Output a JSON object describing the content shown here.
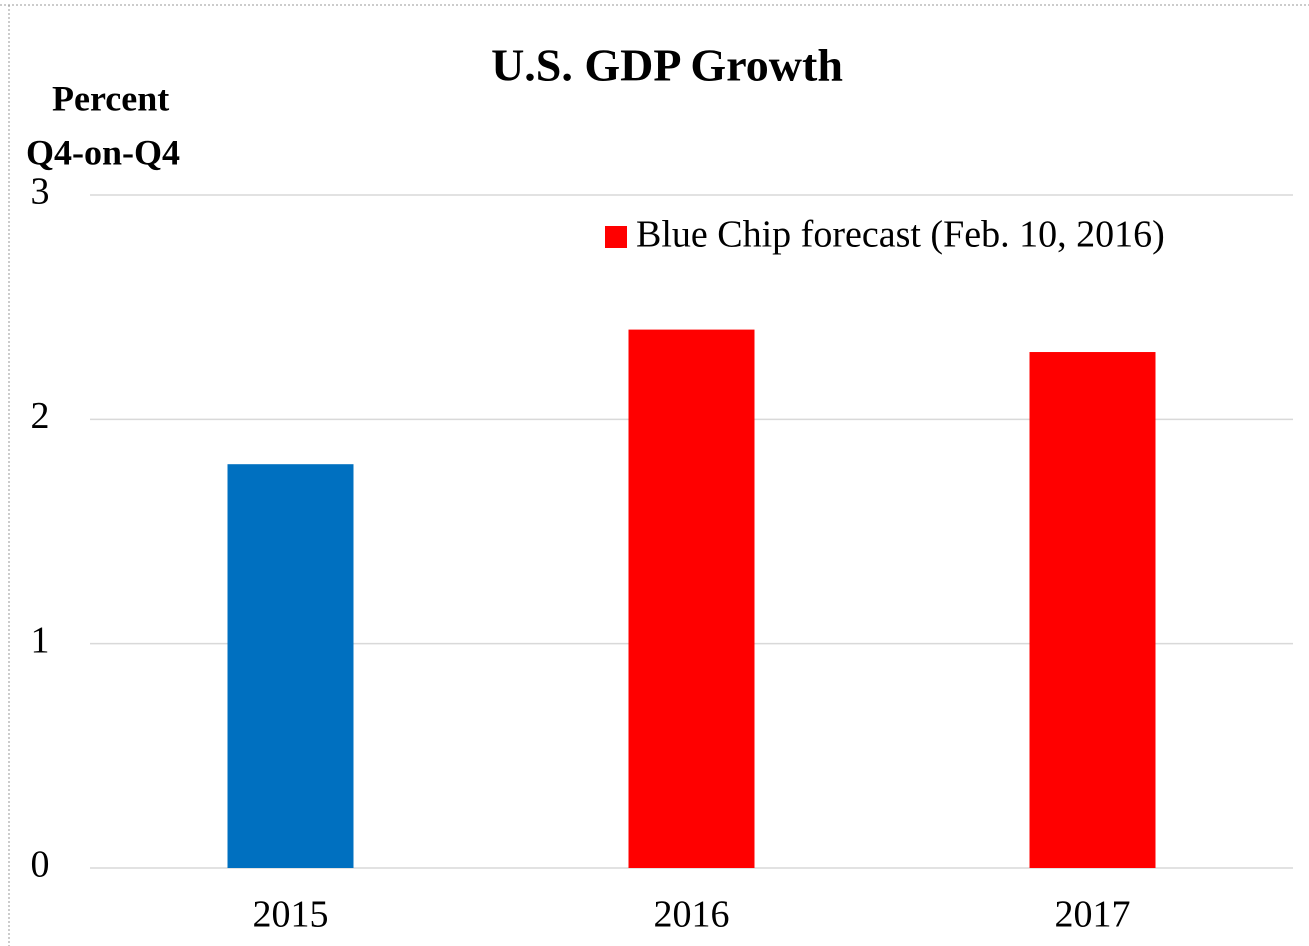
{
  "chart_data": {
    "type": "bar",
    "title": "U.S. GDP Growth",
    "ylabel": [
      "Percent",
      "Q4-on-Q4"
    ],
    "categories": [
      "2015",
      "2016",
      "2017"
    ],
    "values": [
      1.8,
      2.4,
      2.3
    ],
    "colors": [
      "#0070c0",
      "#ff0000",
      "#ff0000"
    ],
    "legend": {
      "name": "Blue Chip forecast (Feb. 10, 2016)",
      "color": "#ff0000"
    },
    "ylim": [
      0,
      3
    ],
    "yticks": [
      0,
      1,
      2,
      3
    ],
    "grid": true
  }
}
